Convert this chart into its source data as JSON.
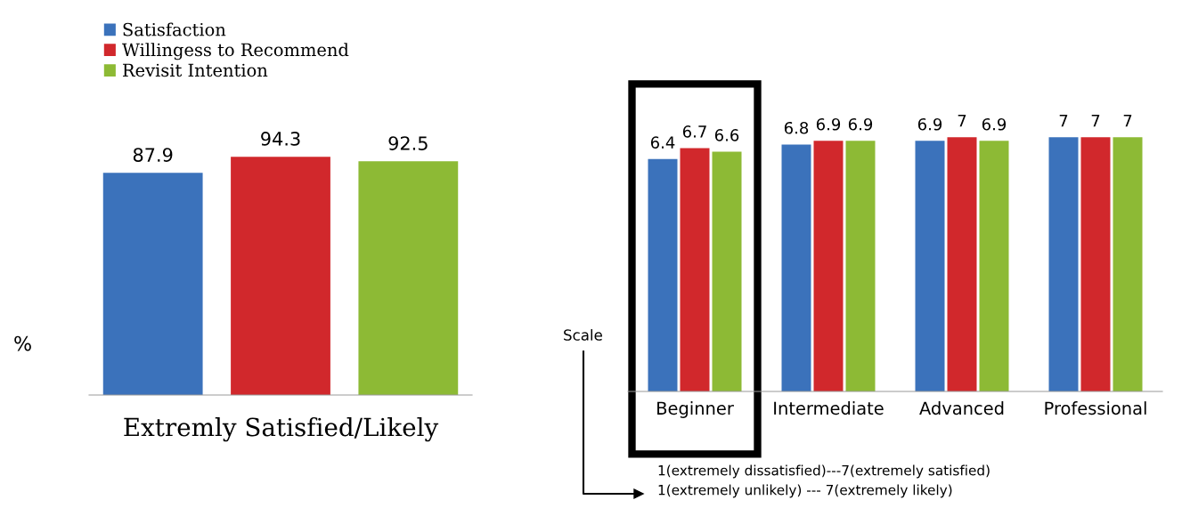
{
  "chart_data": [
    {
      "type": "bar",
      "categories": [
        null,
        null,
        null
      ],
      "xlabel": "Extremly Satisfied/Likely",
      "stacked": true,
      "ylabel": "%",
      "tick_labels": "x",
      "data_labels": true,
      "legend": "top left",
      "grid": false,
      "series": [
        {
          "name": "Satisfaction",
          "color": "#3b72bb",
          "values": [
            87.9,
            null,
            null
          ]
        },
        {
          "name": "Willingess to Recommend",
          "color": "#d1282c",
          "values": [
            null,
            94.3,
            null
          ]
        },
        {
          "name": "Revisit Intention",
          "color": "#8dba35",
          "values": [
            null,
            null,
            92.5
          ]
        }
      ]
    },
    {
      "type": "bar",
      "categories": [
        "Beginner",
        "Intermediate",
        "Advanced",
        "Professional"
      ],
      "ylabel": "Scale",
      "tick_labels": "x",
      "data_labels": true,
      "grid": false,
      "series": [
        {
          "color": "#3b72bb",
          "values": [
            6.4,
            6.8,
            6.9,
            7
          ]
        },
        {
          "color": "#d1282c",
          "values": [
            6.7,
            6.9,
            7,
            7
          ]
        },
        {
          "color": "#8dba35",
          "values": [
            6.6,
            6.9,
            6.9,
            7
          ]
        }
      ],
      "annotations": [
        "1(extremely dissatisfied)---7(extremely satisfied)",
        "1(extremely unlikely) --- 7(extremely likely)"
      ]
    }
  ]
}
